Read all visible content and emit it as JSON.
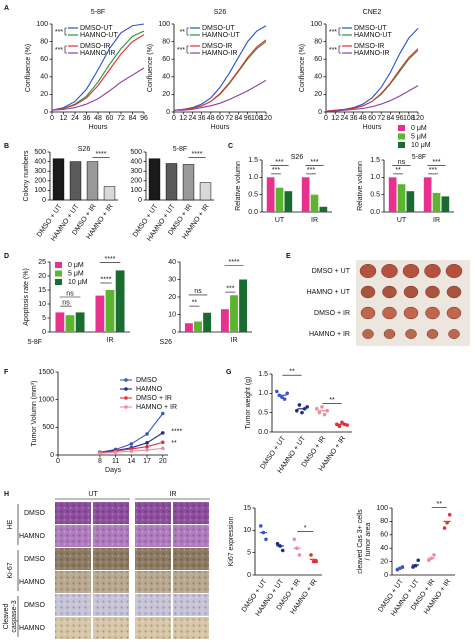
{
  "panels": [
    "A",
    "B",
    "C",
    "D",
    "E",
    "F",
    "G",
    "H"
  ],
  "chart_data": [
    {
      "type": "line",
      "title": "5-8F",
      "x_label": "Hours",
      "y_label": "Confluence (%)",
      "x": [
        0,
        12,
        24,
        36,
        48,
        60,
        72,
        84,
        96
      ],
      "xlim": [
        0,
        96
      ],
      "xticks": [
        0,
        12,
        24,
        36,
        48,
        60,
        72,
        84,
        96
      ],
      "ylim": [
        0,
        100
      ],
      "yticks": [
        0,
        20,
        40,
        60,
        80,
        100
      ],
      "series": [
        {
          "name": "DMSO-UT",
          "color": "#2b4fcf",
          "values": [
            2,
            5,
            12,
            26,
            48,
            72,
            90,
            98,
            100
          ]
        },
        {
          "name": "HAMNO-UT",
          "color": "#2f8f3a",
          "values": [
            2,
            4,
            9,
            18,
            34,
            54,
            72,
            86,
            92
          ]
        },
        {
          "name": "DMSO-IR",
          "color": "#e03030",
          "values": [
            2,
            4,
            8,
            16,
            30,
            48,
            66,
            80,
            88
          ]
        },
        {
          "name": "HAMNO-IR",
          "color": "#8a3fa8",
          "values": [
            2,
            3,
            5,
            9,
            15,
            24,
            34,
            42,
            50
          ]
        }
      ],
      "annotations": [
        "***",
        "***"
      ]
    },
    {
      "type": "line",
      "title": "S26",
      "x_label": "Hours",
      "y_label": "Confluence (%)",
      "x": [
        0,
        12,
        24,
        36,
        48,
        60,
        72,
        84,
        96,
        108,
        120
      ],
      "xlim": [
        0,
        120
      ],
      "xticks": [
        0,
        12,
        24,
        36,
        48,
        60,
        72,
        84,
        96,
        108,
        120
      ],
      "ylim": [
        0,
        100
      ],
      "yticks": [
        0,
        20,
        40,
        60,
        80,
        100
      ],
      "series": [
        {
          "name": "DMSO-UT",
          "color": "#2b4fcf",
          "values": [
            2,
            3,
            5,
            9,
            16,
            28,
            44,
            62,
            80,
            92,
            98
          ]
        },
        {
          "name": "HAMNO-UT",
          "color": "#2f8f3a",
          "values": [
            2,
            3,
            4,
            7,
            12,
            20,
            32,
            46,
            60,
            72,
            80
          ]
        },
        {
          "name": "DMSO-IR",
          "color": "#e03030",
          "values": [
            2,
            3,
            4,
            7,
            12,
            21,
            33,
            47,
            62,
            74,
            82
          ]
        },
        {
          "name": "HAMNO-IR",
          "color": "#8a3fa8",
          "values": [
            2,
            2,
            3,
            5,
            7,
            10,
            14,
            19,
            24,
            30,
            36
          ]
        }
      ],
      "annotations": [
        "**",
        "***"
      ]
    },
    {
      "type": "line",
      "title": "CNE2",
      "x_label": "Hours",
      "y_label": "Confluence (%)",
      "x": [
        0,
        12,
        24,
        36,
        48,
        60,
        72,
        84,
        96,
        108,
        120
      ],
      "xlim": [
        0,
        120
      ],
      "xticks": [
        0,
        12,
        24,
        36,
        48,
        60,
        72,
        84,
        96,
        108,
        120
      ],
      "ylim": [
        0,
        100
      ],
      "yticks": [
        0,
        20,
        40,
        60,
        80,
        100
      ],
      "series": [
        {
          "name": "DMSO-UT",
          "color": "#2b4fcf",
          "values": [
            1,
            2,
            3,
            5,
            9,
            16,
            28,
            45,
            66,
            84,
            95
          ]
        },
        {
          "name": "HAMNO-UT",
          "color": "#2f8f3a",
          "values": [
            1,
            2,
            3,
            4,
            7,
            12,
            20,
            32,
            46,
            60,
            70
          ]
        },
        {
          "name": "DMSO-IR",
          "color": "#e03030",
          "values": [
            1,
            2,
            3,
            4,
            7,
            12,
            21,
            33,
            48,
            62,
            72
          ]
        },
        {
          "name": "HAMNO-IR",
          "color": "#8a3fa8",
          "values": [
            1,
            1,
            2,
            3,
            4,
            6,
            9,
            13,
            18,
            24,
            30
          ]
        }
      ],
      "annotations": [
        "***",
        "***"
      ]
    },
    {
      "type": "bar",
      "title": "S26",
      "y_label": "Colony numbers",
      "categories": [
        "DMSO + UT",
        "HAMNO + UT",
        "DMSO + IR",
        "HAMNO + IR"
      ],
      "values": [
        430,
        400,
        400,
        140
      ],
      "colors": [
        "#1a1a1a",
        "#5a5a5a",
        "#999999",
        "#d9d9d9"
      ],
      "ylim": [
        0,
        500
      ],
      "yticks": [
        0,
        100,
        200,
        300,
        400,
        500
      ],
      "annotations": [
        "****"
      ]
    },
    {
      "type": "bar",
      "title": "5-8F",
      "categories": [
        "DMSO + UT",
        "HAMNO + UT",
        "DMSO + IR",
        "HAMNO + IR"
      ],
      "values": [
        430,
        380,
        370,
        180
      ],
      "colors": [
        "#1a1a1a",
        "#5a5a5a",
        "#999999",
        "#d9d9d9"
      ],
      "ylim": [
        0,
        500
      ],
      "yticks": [
        0,
        100,
        200,
        300,
        400,
        500
      ],
      "annotations": [
        "****"
      ]
    },
    {
      "type": "grouped_bar",
      "title": "S26",
      "y_label": "Relative volumn",
      "categories": [
        "UT",
        "IR"
      ],
      "series": [
        {
          "name": "0 μM",
          "color": "#e8308f",
          "values": [
            1.0,
            1.0
          ]
        },
        {
          "name": "5 μM",
          "color": "#5cb531",
          "values": [
            0.7,
            0.5
          ]
        },
        {
          "name": "10 μM",
          "color": "#1a6b2f",
          "values": [
            0.6,
            0.15
          ]
        }
      ],
      "ylim": [
        0,
        1.5
      ],
      "yticks": [
        {
          "value": 0,
          "label": "0.0"
        },
        {
          "value": 0.5,
          "label": "0.5"
        },
        {
          "value": 1,
          "label": "1.0"
        },
        {
          "value": 1.5,
          "label": "1.5"
        }
      ],
      "annotations": [
        "***",
        "***",
        "***",
        "***"
      ]
    },
    {
      "type": "grouped_bar",
      "title": "5-8F",
      "y_label": "Relative volumn",
      "categories": [
        "UT",
        "IR"
      ],
      "series": [
        {
          "color": "#e8308f",
          "values": [
            1.0,
            1.0
          ]
        },
        {
          "color": "#5cb531",
          "values": [
            0.8,
            0.55
          ]
        },
        {
          "color": "#1a6b2f",
          "values": [
            0.6,
            0.45
          ]
        }
      ],
      "ylim": [
        0,
        1.5
      ],
      "yticks": [
        {
          "value": 0,
          "label": "0.0"
        },
        {
          "value": 0.5,
          "label": "0.5"
        },
        {
          "value": 1,
          "label": "1.0"
        },
        {
          "value": 1.5,
          "label": "1.5"
        }
      ],
      "annotations": [
        "ns",
        "**",
        "***",
        "***"
      ]
    },
    {
      "type": "grouped_bar",
      "title": "5-8F",
      "y_label": "Apoptosis rate (%)",
      "categories": [
        null,
        "IR"
      ],
      "series": [
        {
          "name": "0 μM",
          "color": "#e8308f",
          "values": [
            7,
            13
          ]
        },
        {
          "name": "5 μM",
          "color": "#5cb531",
          "values": [
            6,
            15
          ]
        },
        {
          "name": "10 μM",
          "color": "#1a6b2f",
          "values": [
            7,
            22
          ]
        }
      ],
      "ylim": [
        0,
        25
      ],
      "yticks": [
        0,
        5,
        10,
        15,
        20,
        25
      ],
      "annotations": [
        "ns",
        "ns",
        "****",
        "****"
      ]
    },
    {
      "type": "grouped_bar",
      "title": "S26",
      "categories": [
        null,
        "IR"
      ],
      "series": [
        {
          "color": "#e8308f",
          "values": [
            5,
            13
          ]
        },
        {
          "color": "#5cb531",
          "values": [
            6,
            21
          ]
        },
        {
          "color": "#1a6b2f",
          "values": [
            11,
            30
          ]
        }
      ],
      "ylim": [
        0,
        40
      ],
      "yticks": [
        0,
        10,
        20,
        30,
        40
      ],
      "annotations": [
        "ns",
        "**",
        "***",
        "****"
      ]
    },
    {
      "type": "line",
      "x_label": "Days",
      "y_label": "Tumor Volumn (mm³)",
      "x": [
        8,
        11,
        14,
        17,
        20
      ],
      "xlim": [
        0,
        21
      ],
      "xticks": [
        0,
        8,
        11,
        14,
        17,
        20
      ],
      "ylim": [
        0,
        1500
      ],
      "yticks": [
        0,
        500,
        1000,
        1500
      ],
      "series": [
        {
          "name": "DMSO",
          "color": "#3a57c4",
          "values": [
            50,
            100,
            200,
            380,
            750
          ]
        },
        {
          "name": "HAMNO",
          "color": "#1f2e8a",
          "values": [
            40,
            80,
            130,
            220,
            400
          ]
        },
        {
          "name": "DMSO + IR",
          "color": "#e0323c",
          "values": [
            40,
            70,
            110,
            150,
            230
          ]
        },
        {
          "name": "HAMNO + IR",
          "color": "#f08ca0",
          "values": [
            30,
            50,
            70,
            90,
            120
          ]
        }
      ],
      "annotations": [
        {
          "text": "****",
          "color": "#3a57c4"
        },
        {
          "text": "**",
          "color": "#e0323c"
        }
      ]
    },
    {
      "type": "dot",
      "y_label": "Tumor weight (g)",
      "categories": [
        "DMSO + UT",
        "HAMNO + UT",
        "DMSO + IR",
        "HAMNO + IR"
      ],
      "values": [
        0.95,
        0.6,
        0.55,
        0.2
      ],
      "points": [
        [
          1.05,
          0.95,
          0.9,
          0.85,
          1.0
        ],
        [
          0.55,
          0.7,
          0.5,
          0.6,
          0.65
        ],
        [
          0.6,
          0.5,
          0.65,
          0.45,
          0.55
        ],
        [
          0.2,
          0.15,
          0.25,
          0.2,
          0.18
        ]
      ],
      "colors": [
        "#3a57c4",
        "#1f2e8a",
        "#f08ca0",
        "#e0323c"
      ],
      "ylim": [
        0,
        1.5
      ],
      "yticks": [
        {
          "value": 0,
          "label": "0.0"
        },
        {
          "value": 0.5,
          "label": "0.5"
        },
        {
          "value": 1,
          "label": "1.0"
        },
        {
          "value": 1.5,
          "label": "1.5"
        }
      ],
      "annotations": [
        "**",
        "**"
      ]
    },
    {
      "type": "dot",
      "y_label": "Ki67 expression",
      "categories": [
        "DMSO + UT",
        "HAMNO + UT",
        "DMSO + IR",
        "HAMNO + IR"
      ],
      "values": [
        9.5,
        6.5,
        6,
        3.5
      ],
      "points": [
        [
          11,
          9.5,
          8
        ],
        [
          7,
          6.5,
          5.5
        ],
        [
          8,
          6,
          4.5
        ],
        [
          4.5,
          3,
          3
        ]
      ],
      "colors": [
        "#3a57c4",
        "#1f2e8a",
        "#f08ca0",
        "#e0323c"
      ],
      "ylim": [
        0,
        15
      ],
      "yticks": [
        0,
        5,
        10,
        15
      ],
      "annotations": [
        "*"
      ]
    },
    {
      "type": "dot",
      "y_label": [
        "cleaved Cas 3+ cells",
        "/ tumor area"
      ],
      "categories": [
        "DMSO + UT",
        "HAMNO + UT",
        "DMSO + IR",
        "HAMNO + IR"
      ],
      "values": [
        10,
        15,
        25,
        80
      ],
      "points": [
        [
          8,
          10,
          12
        ],
        [
          12,
          14,
          22
        ],
        [
          22,
          25,
          30
        ],
        [
          70,
          78,
          90
        ]
      ],
      "colors": [
        "#3a57c4",
        "#1f2e8a",
        "#f08ca0",
        "#e0323c"
      ],
      "ylim": [
        0,
        100
      ],
      "yticks": [
        0,
        20,
        40,
        60,
        80,
        100
      ],
      "annotations": [
        "**"
      ]
    }
  ],
  "photos": {
    "rows": [
      "DMSO + UT",
      "HAMNO + UT",
      "DMSO + IR",
      "HAMNO + IR"
    ]
  },
  "histology": {
    "columns": [
      "UT",
      "IR"
    ],
    "stains": [
      [
        "HE"
      ],
      [
        "Ki-67"
      ],
      [
        "Cleaved",
        "caspase-3"
      ]
    ],
    "treatments": [
      "DMSO",
      "HAMNO"
    ]
  }
}
